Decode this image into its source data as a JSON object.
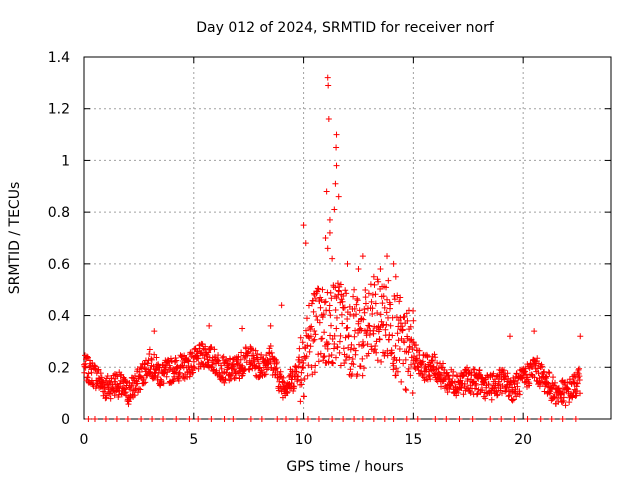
{
  "chart_data": {
    "type": "scatter",
    "title": "Day 012 of 2024, SRMTID for receiver norf",
    "xlabel": "GPS time / hours",
    "ylabel": "SRMTID / TECUs",
    "xlim": [
      0,
      24
    ],
    "ylim": [
      0,
      1.4
    ],
    "x_ticks": [
      0,
      5,
      10,
      15,
      20
    ],
    "y_ticks": [
      0,
      0.2,
      0.4,
      0.6,
      0.8,
      1,
      1.2,
      1.4
    ],
    "x_tick_labels": [
      "0",
      "5",
      "10",
      "15",
      "20"
    ],
    "y_tick_labels": [
      "0",
      "0.2",
      "0.4",
      "0.6",
      "0.8",
      "1",
      "1.2",
      "1.4"
    ],
    "grid": true,
    "marker": "+",
    "color": "#ff0000",
    "series": [
      {
        "name": "SRMTID",
        "x_range": [
          0.0,
          22.6
        ],
        "baseline": [
          [
            0.0,
            0.2
          ],
          [
            0.5,
            0.17
          ],
          [
            1.0,
            0.12
          ],
          [
            1.5,
            0.14
          ],
          [
            2.0,
            0.1
          ],
          [
            2.5,
            0.15
          ],
          [
            3.0,
            0.22
          ],
          [
            3.5,
            0.17
          ],
          [
            4.0,
            0.19
          ],
          [
            4.5,
            0.2
          ],
          [
            5.0,
            0.22
          ],
          [
            5.5,
            0.25
          ],
          [
            6.0,
            0.22
          ],
          [
            6.5,
            0.18
          ],
          [
            7.0,
            0.2
          ],
          [
            7.5,
            0.24
          ],
          [
            8.0,
            0.2
          ],
          [
            8.5,
            0.24
          ],
          [
            9.0,
            0.13
          ],
          [
            9.5,
            0.15
          ],
          [
            10.0,
            0.25
          ],
          [
            10.5,
            0.35
          ],
          [
            11.0,
            0.35
          ],
          [
            11.5,
            0.38
          ],
          [
            12.0,
            0.35
          ],
          [
            12.5,
            0.3
          ],
          [
            13.0,
            0.35
          ],
          [
            13.5,
            0.38
          ],
          [
            14.0,
            0.38
          ],
          [
            14.5,
            0.25
          ],
          [
            15.0,
            0.25
          ],
          [
            15.5,
            0.2
          ],
          [
            16.0,
            0.2
          ],
          [
            16.5,
            0.15
          ],
          [
            17.0,
            0.14
          ],
          [
            17.5,
            0.15
          ],
          [
            18.0,
            0.14
          ],
          [
            18.5,
            0.12
          ],
          [
            19.0,
            0.15
          ],
          [
            19.5,
            0.12
          ],
          [
            20.0,
            0.15
          ],
          [
            20.5,
            0.2
          ],
          [
            21.0,
            0.15
          ],
          [
            21.5,
            0.1
          ],
          [
            22.0,
            0.1
          ],
          [
            22.6,
            0.15
          ]
        ],
        "peaks": [
          {
            "x": 11.1,
            "y": 1.32
          },
          {
            "x": 11.12,
            "y": 1.29
          },
          {
            "x": 11.15,
            "y": 1.16
          },
          {
            "x": 11.5,
            "y": 1.1
          },
          {
            "x": 11.48,
            "y": 1.05
          },
          {
            "x": 11.5,
            "y": 0.98
          },
          {
            "x": 11.45,
            "y": 0.91
          },
          {
            "x": 11.6,
            "y": 0.86
          },
          {
            "x": 11.4,
            "y": 0.81
          },
          {
            "x": 11.2,
            "y": 0.77
          },
          {
            "x": 11.05,
            "y": 0.88
          },
          {
            "x": 11.2,
            "y": 0.72
          },
          {
            "x": 10.0,
            "y": 0.75
          },
          {
            "x": 10.1,
            "y": 0.68
          },
          {
            "x": 11.0,
            "y": 0.7
          },
          {
            "x": 11.1,
            "y": 0.66
          },
          {
            "x": 11.3,
            "y": 0.62
          },
          {
            "x": 12.0,
            "y": 0.6
          },
          {
            "x": 12.5,
            "y": 0.58
          },
          {
            "x": 12.7,
            "y": 0.63
          },
          {
            "x": 13.5,
            "y": 0.58
          },
          {
            "x": 13.8,
            "y": 0.63
          },
          {
            "x": 14.1,
            "y": 0.6
          },
          {
            "x": 14.2,
            "y": 0.55
          },
          {
            "x": 13.2,
            "y": 0.55
          },
          {
            "x": 10.5,
            "y": 0.48
          },
          {
            "x": 11.7,
            "y": 0.52
          },
          {
            "x": 12.3,
            "y": 0.5
          },
          {
            "x": 14.4,
            "y": 0.47
          },
          {
            "x": 14.8,
            "y": 0.42
          },
          {
            "x": 15.0,
            "y": 0.38
          },
          {
            "x": 3.2,
            "y": 0.34
          },
          {
            "x": 5.7,
            "y": 0.36
          },
          {
            "x": 7.2,
            "y": 0.35
          },
          {
            "x": 8.5,
            "y": 0.36
          },
          {
            "x": 9.0,
            "y": 0.44
          },
          {
            "x": 19.4,
            "y": 0.32
          },
          {
            "x": 20.5,
            "y": 0.34
          },
          {
            "x": 22.6,
            "y": 0.32
          }
        ],
        "zero_markers_x": [
          0.2,
          0.5,
          1.0,
          1.5,
          2.0,
          2.6,
          3.1,
          3.6,
          4.2,
          4.8,
          5.2,
          5.8,
          6.4,
          6.8,
          7.6,
          8.1,
          8.8,
          9.2,
          9.7,
          10.2,
          10.7,
          11.3,
          11.8,
          12.3,
          12.7,
          13.2,
          13.7,
          14.1,
          14.7,
          15.2,
          16.0,
          16.5,
          17.1,
          17.7,
          18.5,
          19.0,
          19.6,
          20.2,
          20.8,
          21.3,
          21.8,
          22.4
        ]
      }
    ]
  }
}
